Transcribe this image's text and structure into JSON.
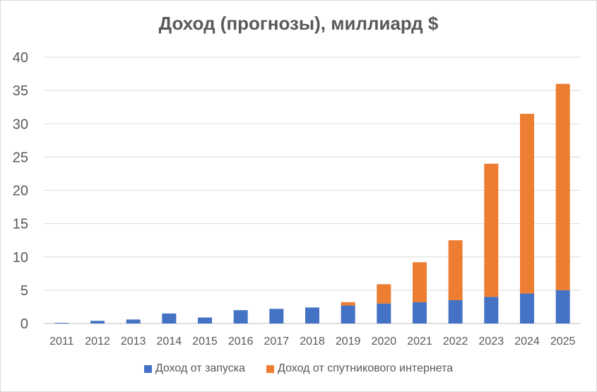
{
  "chart_data": {
    "type": "bar",
    "stacked": true,
    "title": "Доход (прогнозы), миллиард $",
    "categories": [
      "2011",
      "2012",
      "2013",
      "2014",
      "2015",
      "2016",
      "2017",
      "2018",
      "2019",
      "2020",
      "2021",
      "2022",
      "2023",
      "2024",
      "2025"
    ],
    "series": [
      {
        "name": "Доход от запуска",
        "color": "#4472c4",
        "values": [
          0.1,
          0.4,
          0.6,
          1.5,
          0.9,
          2.0,
          2.2,
          2.4,
          2.7,
          3.0,
          3.2,
          3.5,
          4.0,
          4.5,
          5.0
        ]
      },
      {
        "name": "Доход от спутникового интернета",
        "color": "#ed7d31",
        "values": [
          0,
          0,
          0,
          0,
          0,
          0,
          0,
          0,
          0.5,
          2.9,
          6.0,
          9.0,
          20.0,
          27.0,
          31.0
        ]
      }
    ],
    "ylim": [
      0,
      40
    ],
    "yticks": [
      "0",
      "5",
      "10",
      "15",
      "20",
      "25",
      "30",
      "35",
      "40"
    ],
    "grid": true,
    "legend_position": "bottom"
  }
}
